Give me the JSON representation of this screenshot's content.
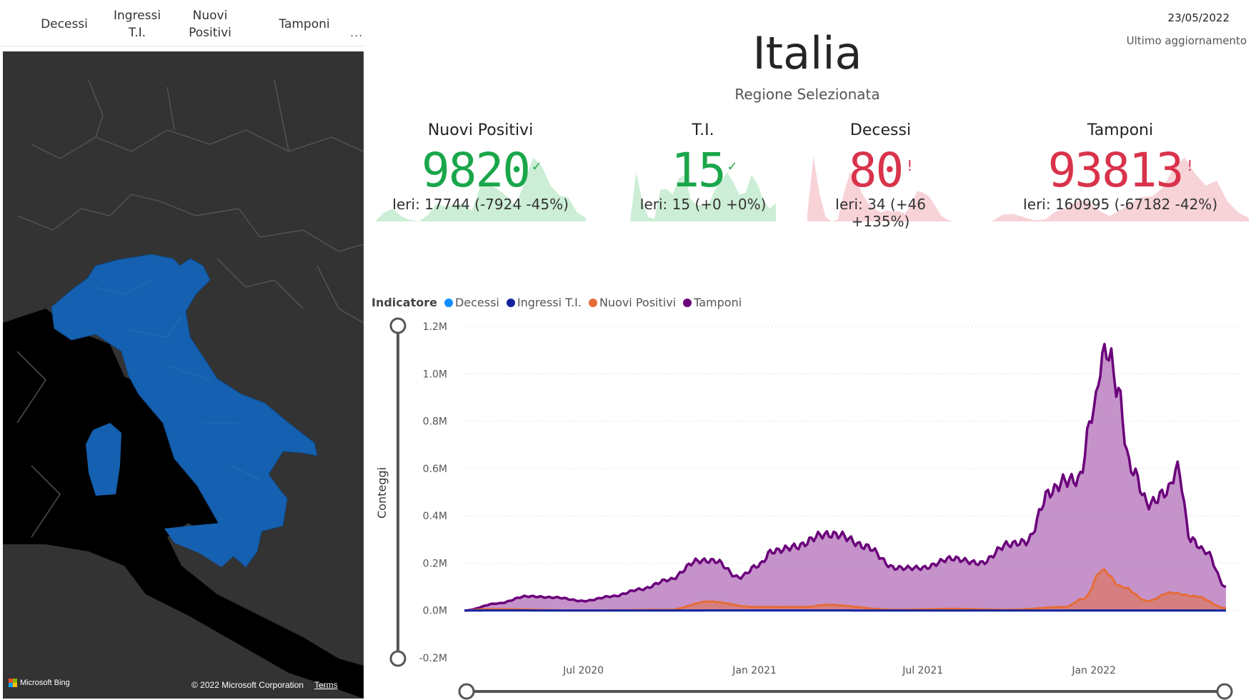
{
  "tabs": [
    {
      "label": "Decessi",
      "lines": [
        "Decessi"
      ]
    },
    {
      "label": "Ingressi T.I.",
      "lines": [
        "Ingressi",
        "T.I."
      ]
    },
    {
      "label": "Nuovi Positivi",
      "lines": [
        "Nuovi",
        "Positivi"
      ]
    },
    {
      "label": "Tamponi",
      "lines": [
        "Tamponi"
      ]
    }
  ],
  "tabs_more": "...",
  "map": {
    "bing_label": "Microsoft Bing",
    "copyright": "© 2022 Microsoft Corporation",
    "terms": "Terms",
    "region_color": "#1560b0",
    "land_color": "#333333",
    "sea_color": "#000000"
  },
  "header": {
    "date": "23/05/2022",
    "updated_label": "Ultimo aggiornamento",
    "title": "Italia",
    "subtitle": "Regione Selezionata"
  },
  "kpis": [
    {
      "id": "positivi",
      "label": "Nuovi Positivi",
      "value": "9820",
      "mark": "✓",
      "status": "good",
      "previous": "Ieri: 17744 (-7924 -45%)"
    },
    {
      "id": "ti",
      "label": "T.I.",
      "value": "15",
      "mark": "✓",
      "status": "good",
      "previous": "Ieri: 15 (+0 +0%)"
    },
    {
      "id": "decessi",
      "label": "Decessi",
      "value": "80",
      "mark": "!",
      "status": "bad",
      "previous": "Ieri: 34 (+46 +135%)"
    },
    {
      "id": "tamponi",
      "label": "Tamponi",
      "value": "93813",
      "mark": "!",
      "status": "bad",
      "previous": "Ieri: 160995 (-67182 -42%)"
    }
  ],
  "colors": {
    "good": "#1aa64a",
    "bad": "#d9334c",
    "good_fill": "#cdeed6",
    "bad_fill": "#f7d3d8"
  },
  "chart_data": {
    "type": "area",
    "legend_title": "Indicatore",
    "ylabel": "Conteggi",
    "xlabel": "",
    "ylim": [
      -0.2,
      1.2
    ],
    "y_unit": "M",
    "y_ticks": [
      "1.2M",
      "1.0M",
      "0.8M",
      "0.6M",
      "0.4M",
      "0.2M",
      "0.0M",
      "-0.2M"
    ],
    "x_ticks": [
      {
        "label": "Jul 2020",
        "date": "2020-07-01"
      },
      {
        "label": "Jan 2021",
        "date": "2021-01-01"
      },
      {
        "label": "Jul 2021",
        "date": "2021-07-01"
      },
      {
        "label": "Jan 2022",
        "date": "2022-01-01"
      }
    ],
    "grid": true,
    "legend_position": "top-left",
    "series": [
      {
        "name": "Decessi",
        "color": "#118dff",
        "x": [
          "2020-02-24",
          "2020-03-27",
          "2020-06-30",
          "2020-11-25",
          "2021-03-31",
          "2021-08-02",
          "2021-12-01",
          "2022-01-17",
          "2022-03-21",
          "2022-05-23"
        ],
        "values": [
          0,
          0.0008,
          0.0001,
          0.0008,
          0.0005,
          5e-05,
          0.0001,
          0.0004,
          0.0002,
          0.0001
        ]
      },
      {
        "name": "Ingressi T.I.",
        "color": "#12239e",
        "x": [
          "2020-02-24",
          "2020-03-27",
          "2020-06-30",
          "2020-11-25",
          "2021-03-31",
          "2021-08-02",
          "2021-12-01",
          "2022-01-17",
          "2022-03-21",
          "2022-05-23"
        ],
        "values": [
          0,
          0.0003,
          1e-05,
          0.0002,
          0.0002,
          2e-05,
          5e-05,
          0.0001,
          3e-05,
          2e-05
        ]
      },
      {
        "name": "Nuovi Positivi",
        "color": "#e66c37",
        "x": [
          "2020-02-24",
          "2020-03-21",
          "2020-06-30",
          "2020-10-01",
          "2020-11-13",
          "2020-12-31",
          "2021-02-28",
          "2021-03-18",
          "2021-06-01",
          "2021-08-01",
          "2021-10-01",
          "2021-12-01",
          "2021-12-21",
          "2022-01-10",
          "2022-01-31",
          "2022-02-28",
          "2022-03-24",
          "2022-04-20",
          "2022-05-23"
        ],
        "values": [
          0,
          0.006,
          0.0002,
          0.003,
          0.038,
          0.015,
          0.015,
          0.024,
          0.003,
          0.007,
          0.003,
          0.015,
          0.05,
          0.17,
          0.1,
          0.04,
          0.075,
          0.06,
          0.01
        ]
      },
      {
        "name": "Tamponi",
        "color": "#6b007b",
        "x": [
          "2020-02-24",
          "2020-03-31",
          "2020-05-01",
          "2020-06-01",
          "2020-07-01",
          "2020-08-01",
          "2020-09-01",
          "2020-10-01",
          "2020-11-01",
          "2020-11-20",
          "2020-12-15",
          "2021-01-05",
          "2021-01-20",
          "2021-02-15",
          "2021-03-15",
          "2021-04-01",
          "2021-05-01",
          "2021-06-01",
          "2021-07-01",
          "2021-08-01",
          "2021-09-01",
          "2021-10-01",
          "2021-10-20",
          "2021-11-15",
          "2021-12-01",
          "2021-12-15",
          "2022-01-01",
          "2022-01-10",
          "2022-01-17",
          "2022-01-25",
          "2022-02-10",
          "2022-03-01",
          "2022-03-20",
          "2022-04-01",
          "2022-04-15",
          "2022-05-01",
          "2022-05-23"
        ],
        "values": [
          0,
          0.03,
          0.06,
          0.055,
          0.04,
          0.06,
          0.09,
          0.13,
          0.21,
          0.21,
          0.14,
          0.19,
          0.25,
          0.27,
          0.32,
          0.32,
          0.27,
          0.18,
          0.18,
          0.22,
          0.2,
          0.28,
          0.29,
          0.5,
          0.55,
          0.55,
          0.85,
          1.07,
          1.1,
          0.95,
          0.6,
          0.45,
          0.5,
          0.6,
          0.3,
          0.25,
          0.1
        ]
      }
    ]
  }
}
